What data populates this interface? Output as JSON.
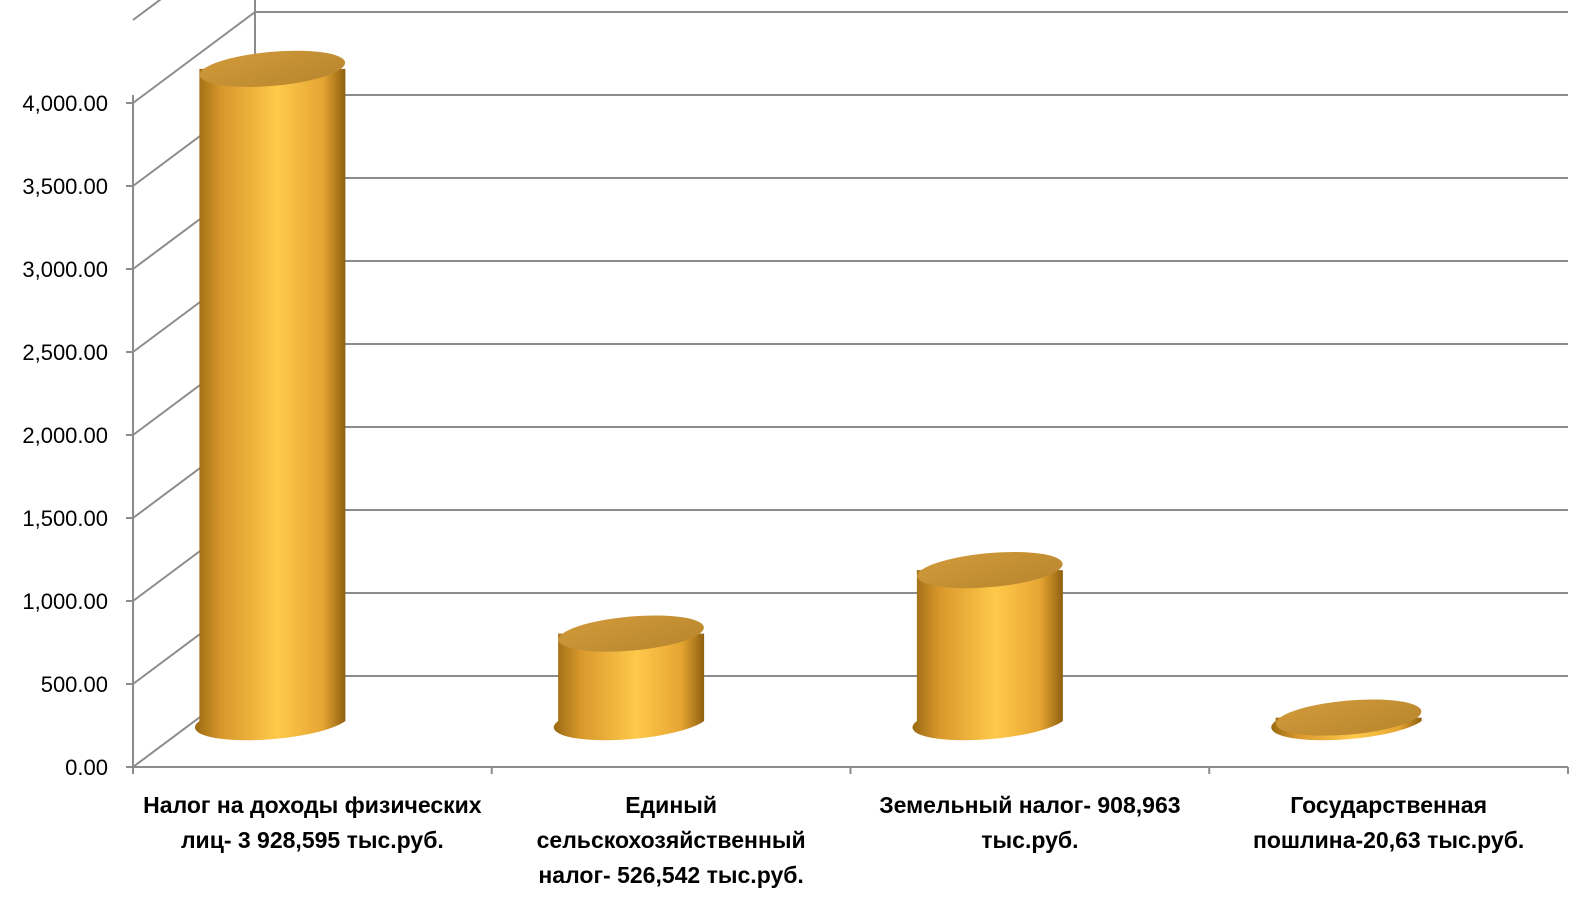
{
  "chart_data": {
    "type": "bar",
    "style": "3d-cylinder",
    "categories": [
      "Налог на доходы физических лиц- 3 928,595 тыс.руб.",
      "Единый сельскохозяйственный налог- 526,542 тыс.руб.",
      "Земельный налог- 908,963 тыс.руб.",
      "Государственная пошлина-20,63 тыс.руб."
    ],
    "values": [
      3928.595,
      526.542,
      908.963,
      20.63
    ],
    "ylim": [
      0,
      4000
    ],
    "yticks": [
      "0.00",
      "500.00",
      "1,000.00",
      "1,500.00",
      "2,000.00",
      "2,500.00",
      "3,000.00",
      "3,500.00",
      "4,000.00"
    ],
    "grid": true,
    "bar_color": "#F5B53C",
    "title": "",
    "xlabel": "",
    "ylabel": ""
  }
}
